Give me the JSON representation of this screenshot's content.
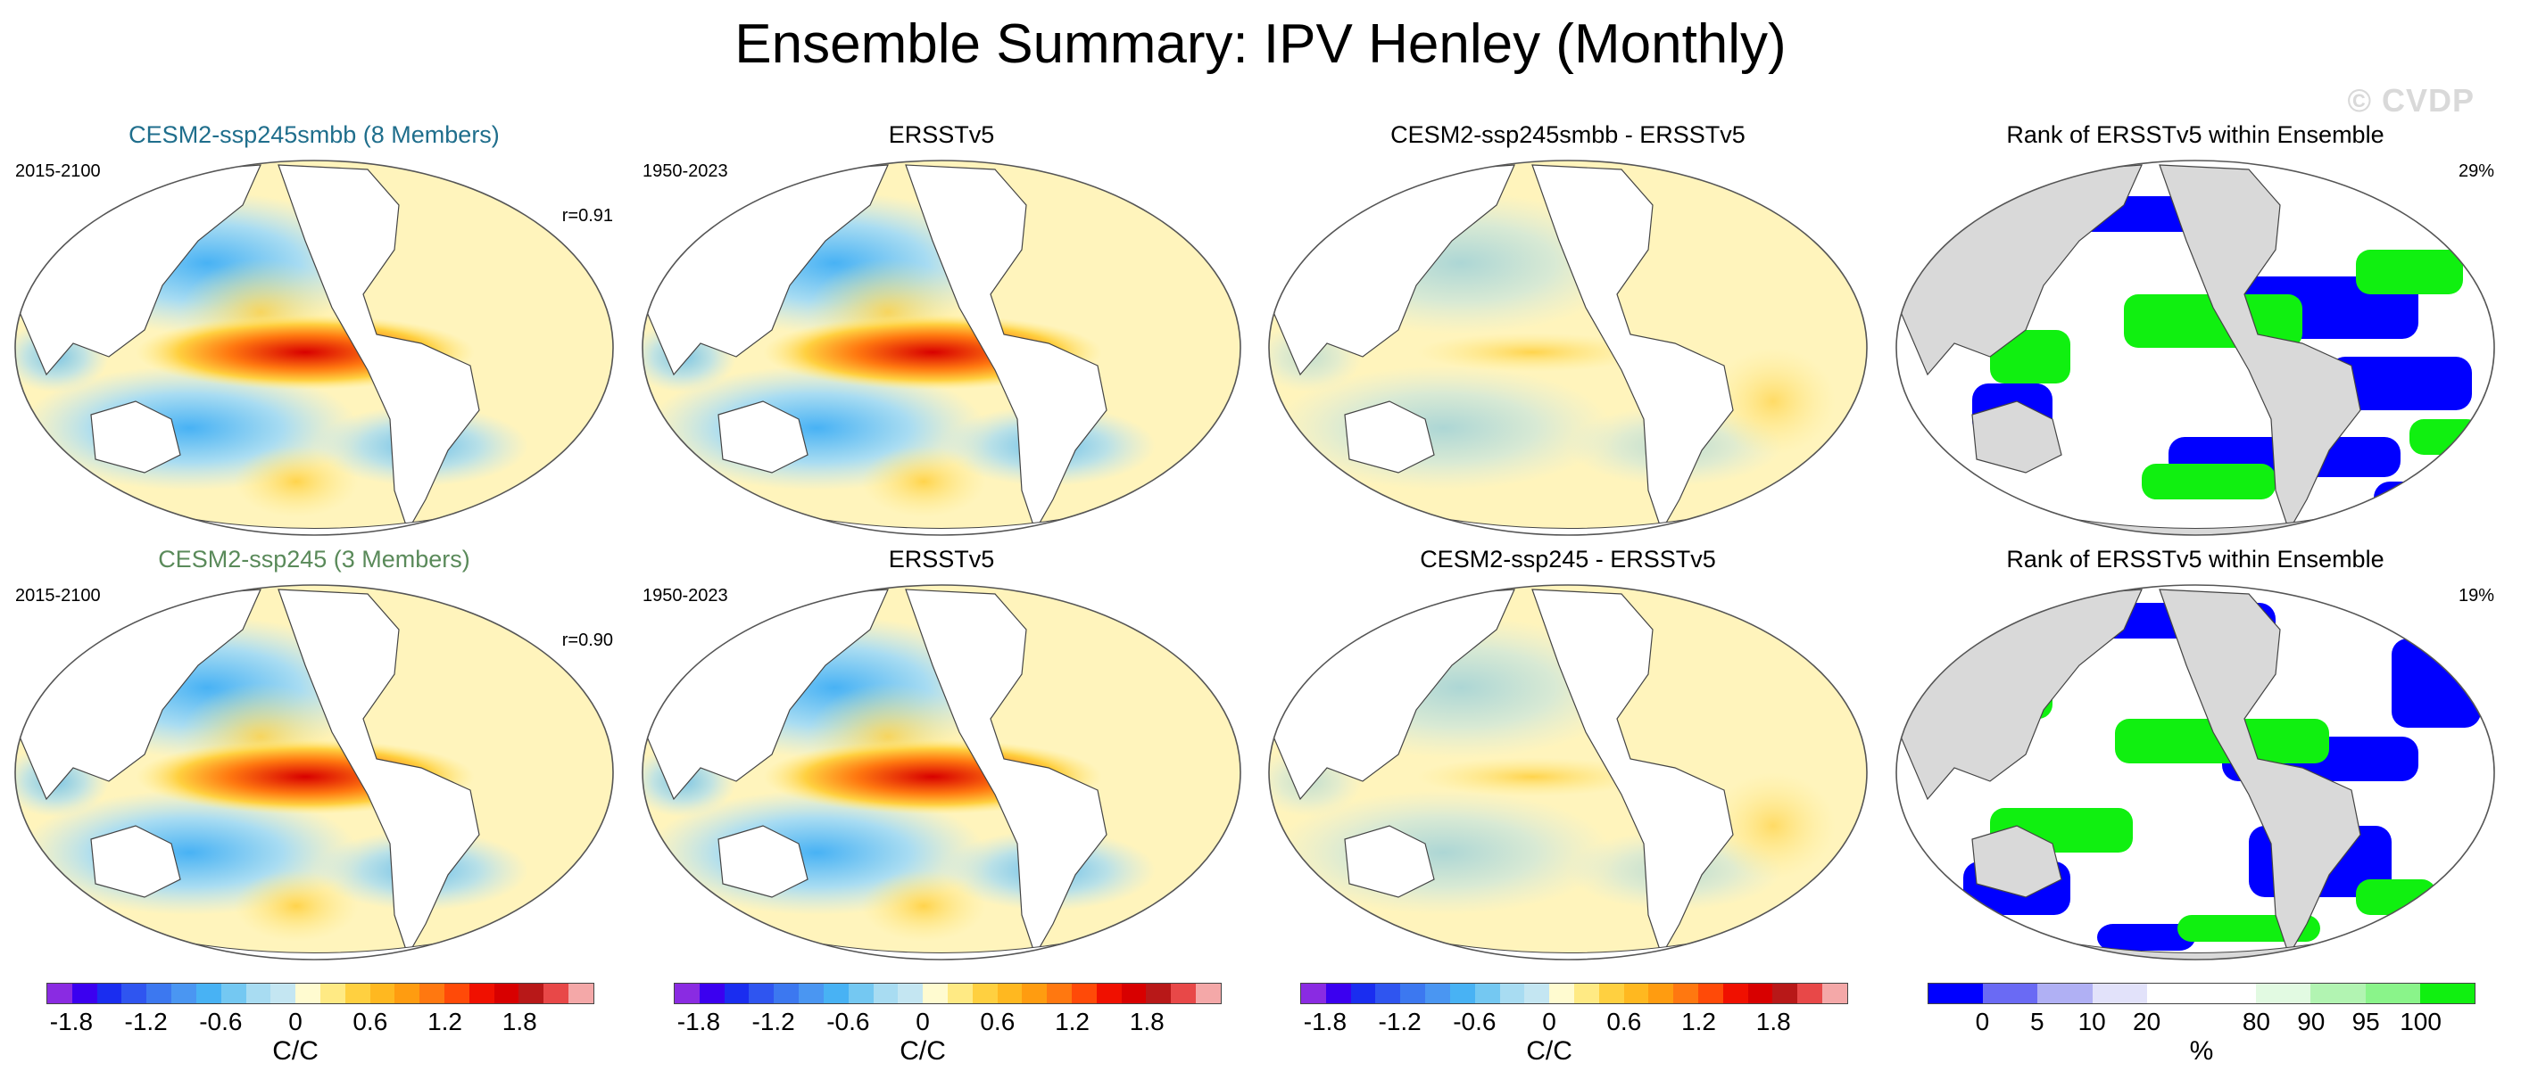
{
  "title": "Ensemble Summary: IPV Henley (Monthly)",
  "watermark": "© CVDP",
  "panels": [
    {
      "title": "CESM2-ssp245smbb (8 Members)",
      "title_color": "#1f6e8c",
      "years": "2015-2100",
      "stat": "r=0.91",
      "kind": "model"
    },
    {
      "title": "ERSSTv5",
      "title_color": "#000000",
      "years": "1950-2023",
      "stat": "",
      "kind": "obs"
    },
    {
      "title": "CESM2-ssp245smbb - ERSSTv5",
      "title_color": "#000000",
      "years": "",
      "stat": "",
      "kind": "diff"
    },
    {
      "title": "Rank of ERSSTv5 within Ensemble",
      "title_color": "#000000",
      "years": "",
      "stat": "29%",
      "kind": "rank"
    },
    {
      "title": "CESM2-ssp245 (3 Members)",
      "title_color": "#5a8a5a",
      "years": "2015-2100",
      "stat": "r=0.90",
      "kind": "model"
    },
    {
      "title": "ERSSTv5",
      "title_color": "#000000",
      "years": "1950-2023",
      "stat": "",
      "kind": "obs"
    },
    {
      "title": "CESM2-ssp245 - ERSSTv5",
      "title_color": "#000000",
      "years": "",
      "stat": "",
      "kind": "diff"
    },
    {
      "title": "Rank of ERSSTv5 within Ensemble",
      "title_color": "#000000",
      "years": "",
      "stat": "19%",
      "kind": "rank"
    }
  ],
  "colorbars": [
    {
      "units": "C/C",
      "ticks": [
        "-1.8",
        "-1.2",
        "-0.6",
        "0",
        "0.6",
        "1.2",
        "1.8"
      ],
      "tick_index": [
        1,
        4,
        7,
        10,
        13,
        16,
        19
      ],
      "colors": [
        "#8a2be2",
        "#3b00f0",
        "#1a2df0",
        "#2f55f0",
        "#3c78f0",
        "#4a96f2",
        "#48b2f4",
        "#74c8f2",
        "#a8dcf2",
        "#c4e6f2",
        "#fffbd0",
        "#ffea84",
        "#ffd040",
        "#ffb820",
        "#ff9c10",
        "#ff7810",
        "#ff4a08",
        "#f01000",
        "#d80000",
        "#b81818",
        "#e84848",
        "#f4a8a8"
      ]
    },
    {
      "units": "C/C",
      "ticks": [
        "-1.8",
        "-1.2",
        "-0.6",
        "0",
        "0.6",
        "1.2",
        "1.8"
      ],
      "tick_index": [
        1,
        4,
        7,
        10,
        13,
        16,
        19
      ],
      "colors": [
        "#8a2be2",
        "#3b00f0",
        "#1a2df0",
        "#2f55f0",
        "#3c78f0",
        "#4a96f2",
        "#48b2f4",
        "#74c8f2",
        "#a8dcf2",
        "#c4e6f2",
        "#fffbd0",
        "#ffea84",
        "#ffd040",
        "#ffb820",
        "#ff9c10",
        "#ff7810",
        "#ff4a08",
        "#f01000",
        "#d80000",
        "#b81818",
        "#e84848",
        "#f4a8a8"
      ]
    },
    {
      "units": "C/C",
      "ticks": [
        "-1.8",
        "-1.2",
        "-0.6",
        "0",
        "0.6",
        "1.2",
        "1.8"
      ],
      "tick_index": [
        1,
        4,
        7,
        10,
        13,
        16,
        19
      ],
      "colors": [
        "#8a2be2",
        "#3b00f0",
        "#1a2df0",
        "#2f55f0",
        "#3c78f0",
        "#4a96f2",
        "#48b2f4",
        "#74c8f2",
        "#a8dcf2",
        "#c4e6f2",
        "#fffbd0",
        "#ffea84",
        "#ffd040",
        "#ffb820",
        "#ff9c10",
        "#ff7810",
        "#ff4a08",
        "#f01000",
        "#d80000",
        "#b81818",
        "#e84848",
        "#f4a8a8"
      ]
    },
    {
      "units": "%",
      "ticks": [
        "0",
        "5",
        "10",
        "20",
        "80",
        "90",
        "95",
        "100"
      ],
      "tick_index": [
        1,
        2,
        3,
        4,
        6,
        7,
        8,
        9
      ],
      "colors": [
        "#0000ff",
        "#6a6af4",
        "#b0b0f4",
        "#e2e2fa",
        "#ffffff",
        "#ffffff",
        "#e2fae2",
        "#b2f4b2",
        "#8af48a",
        "#10f010"
      ]
    }
  ]
}
